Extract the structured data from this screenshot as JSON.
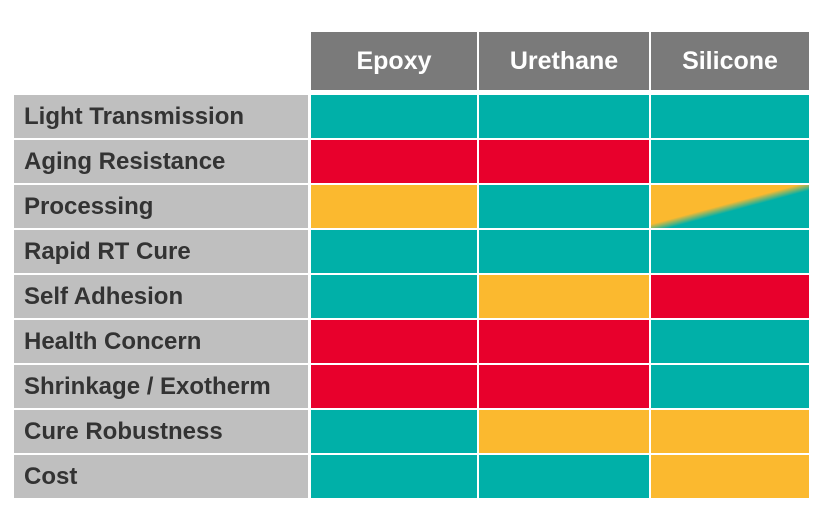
{
  "columns": [
    "Epoxy",
    "Urethane",
    "Silicone"
  ],
  "legend_colors": {
    "good": "#00b0a8",
    "fair": "#fbb92f",
    "poor": "#e8002c"
  },
  "rows": [
    {
      "label": "Light Transmission",
      "ratings": [
        "good",
        "good",
        "good"
      ]
    },
    {
      "label": "Aging Resistance",
      "ratings": [
        "poor",
        "poor",
        "good"
      ]
    },
    {
      "label": "Processing",
      "ratings": [
        "fair",
        "good",
        "fair-good"
      ]
    },
    {
      "label": "Rapid RT Cure",
      "ratings": [
        "good",
        "good",
        "good"
      ]
    },
    {
      "label": "Self Adhesion",
      "ratings": [
        "good",
        "fair",
        "poor"
      ]
    },
    {
      "label": "Health Concern",
      "ratings": [
        "poor",
        "poor",
        "good"
      ]
    },
    {
      "label": "Shrinkage / Exotherm",
      "ratings": [
        "poor",
        "poor",
        "good"
      ]
    },
    {
      "label": "Cure Robustness",
      "ratings": [
        "good",
        "fair",
        "fair"
      ]
    },
    {
      "label": "Cost",
      "ratings": [
        "good",
        "good",
        "fair"
      ]
    }
  ]
}
